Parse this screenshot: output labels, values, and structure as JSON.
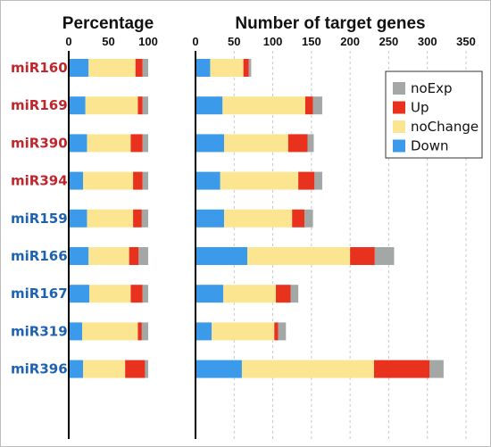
{
  "chart_data": [
    {
      "type": "bar",
      "orientation": "horizontal",
      "stacked": true,
      "title": "Percentage",
      "xlim": [
        0,
        100
      ],
      "xticks": [
        "0",
        "50",
        "100"
      ],
      "categories": [
        "miR160",
        "miR169",
        "miR390",
        "miR394",
        "miR159",
        "miR166",
        "miR167",
        "miR319",
        "miR396"
      ],
      "category_colors": [
        "#c0272d",
        "#c0272d",
        "#c0272d",
        "#c0272d",
        "#1f63b0",
        "#1f63b0",
        "#1f63b0",
        "#1f63b0",
        "#1f63b0"
      ],
      "series": [
        {
          "name": "Down",
          "color": "#3b9bea",
          "values": [
            25,
            21,
            23,
            18,
            23,
            25,
            26,
            17,
            18
          ]
        },
        {
          "name": "noChange",
          "color": "#fce591",
          "values": [
            59,
            66,
            55,
            63,
            58,
            51,
            52,
            70,
            53
          ]
        },
        {
          "name": "Up",
          "color": "#e9321e",
          "values": [
            9,
            6,
            15,
            12,
            11,
            12,
            15,
            5,
            25
          ]
        },
        {
          "name": "noExp",
          "color": "#a3a8a7",
          "values": [
            7,
            7,
            7,
            7,
            8,
            12,
            7,
            8,
            4
          ]
        }
      ]
    },
    {
      "type": "bar",
      "orientation": "horizontal",
      "stacked": true,
      "title": "Number of target genes",
      "xlim": [
        0,
        350
      ],
      "xticks": [
        "0",
        "50",
        "100",
        "150",
        "200",
        "250",
        "300",
        "350"
      ],
      "grid": true,
      "legend": {
        "position": "top-right",
        "order": [
          "noExp",
          "Up",
          "noChange",
          "Down"
        ]
      },
      "categories": [
        "miR160",
        "miR169",
        "miR390",
        "miR394",
        "miR159",
        "miR166",
        "miR167",
        "miR319",
        "miR396"
      ],
      "series": [
        {
          "name": "Down",
          "color": "#3b9bea",
          "values": [
            19,
            35,
            37,
            32,
            37,
            67,
            36,
            21,
            60
          ]
        },
        {
          "name": "noChange",
          "color": "#fce591",
          "values": [
            43,
            107,
            83,
            101,
            88,
            133,
            68,
            81,
            171
          ]
        },
        {
          "name": "Up",
          "color": "#e9321e",
          "values": [
            7,
            10,
            25,
            21,
            16,
            32,
            19,
            5,
            72
          ]
        },
        {
          "name": "noExp",
          "color": "#a3a8a7",
          "values": [
            3,
            12,
            8,
            10,
            11,
            25,
            10,
            10,
            18
          ]
        }
      ]
    }
  ]
}
